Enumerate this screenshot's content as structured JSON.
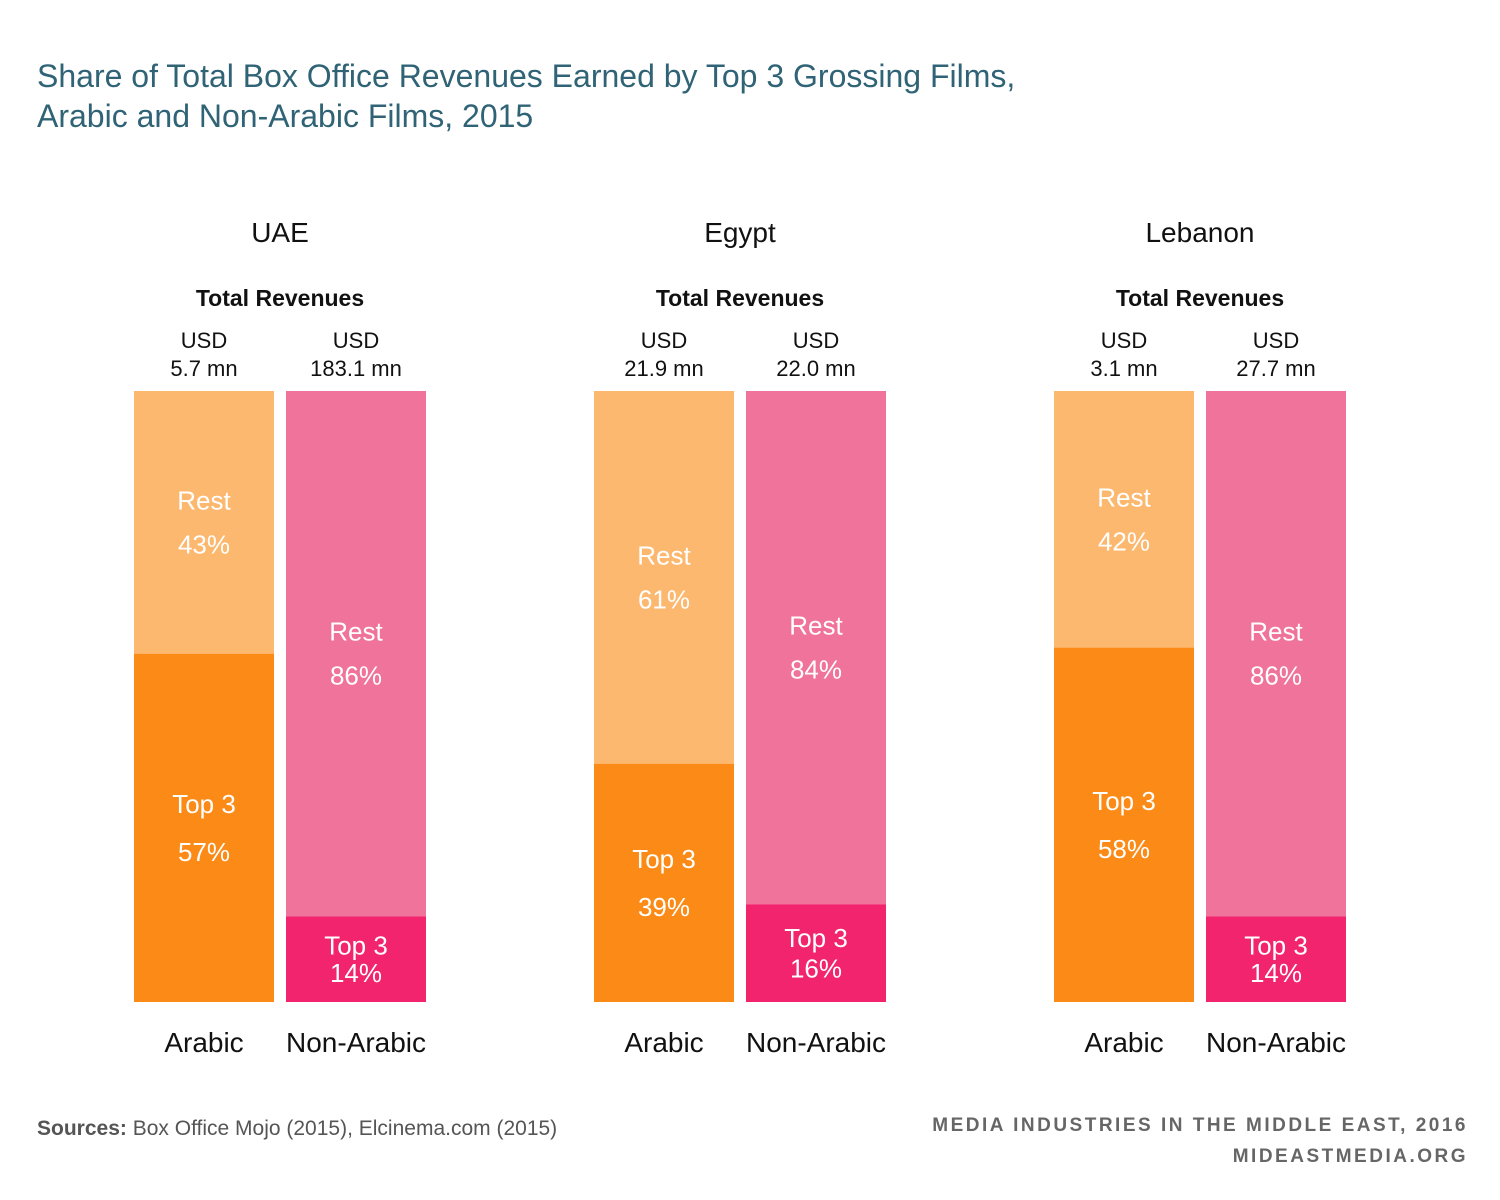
{
  "title": {
    "line1": "Share of Total Box Office Revenues Earned by Top 3 Grossing Films,",
    "line2": "Arabic and Non-Arabic Films, 2015"
  },
  "chart_data": {
    "type": "bar",
    "stacked": true,
    "normalized_percent": true,
    "subtitle_label": "Total Revenues",
    "segment_labels": {
      "top": "Top 3",
      "rest": "Rest"
    },
    "colors": {
      "arabic_top": "#fb8a16",
      "arabic_rest": "#fdb86f",
      "nonarabic_top": "#f2246d",
      "nonarabic_rest": "#ef739b"
    },
    "groups": [
      {
        "name": "UAE",
        "bars": [
          {
            "category": "Arabic",
            "total_line1": "USD",
            "total_line2": "5.7 mn",
            "top3_pct": 57,
            "rest_pct": 43
          },
          {
            "category": "Non-Arabic",
            "total_line1": "USD",
            "total_line2": "183.1 mn",
            "top3_pct": 14,
            "rest_pct": 86
          }
        ]
      },
      {
        "name": "Egypt",
        "bars": [
          {
            "category": "Arabic",
            "total_line1": "USD",
            "total_line2": "21.9 mn",
            "top3_pct": 39,
            "rest_pct": 61
          },
          {
            "category": "Non-Arabic",
            "total_line1": "USD",
            "total_line2": "22.0 mn",
            "top3_pct": 16,
            "rest_pct": 84
          }
        ]
      },
      {
        "name": "Lebanon",
        "bars": [
          {
            "category": "Arabic",
            "total_line1": "USD",
            "total_line2": "3.1 mn",
            "top3_pct": 58,
            "rest_pct": 42
          },
          {
            "category": "Non-Arabic",
            "total_line1": "USD",
            "total_line2": "27.7 mn",
            "top3_pct": 14,
            "rest_pct": 86
          }
        ]
      }
    ]
  },
  "footer": {
    "sources_label": "Sources:",
    "sources_text": " Box Office Mojo (2015), Elcinema.com (2015)",
    "brand_line1": "MEDIA INDUSTRIES IN THE MIDDLE EAST, 2016",
    "brand_line2": "MIDEASTMEDIA.ORG"
  }
}
